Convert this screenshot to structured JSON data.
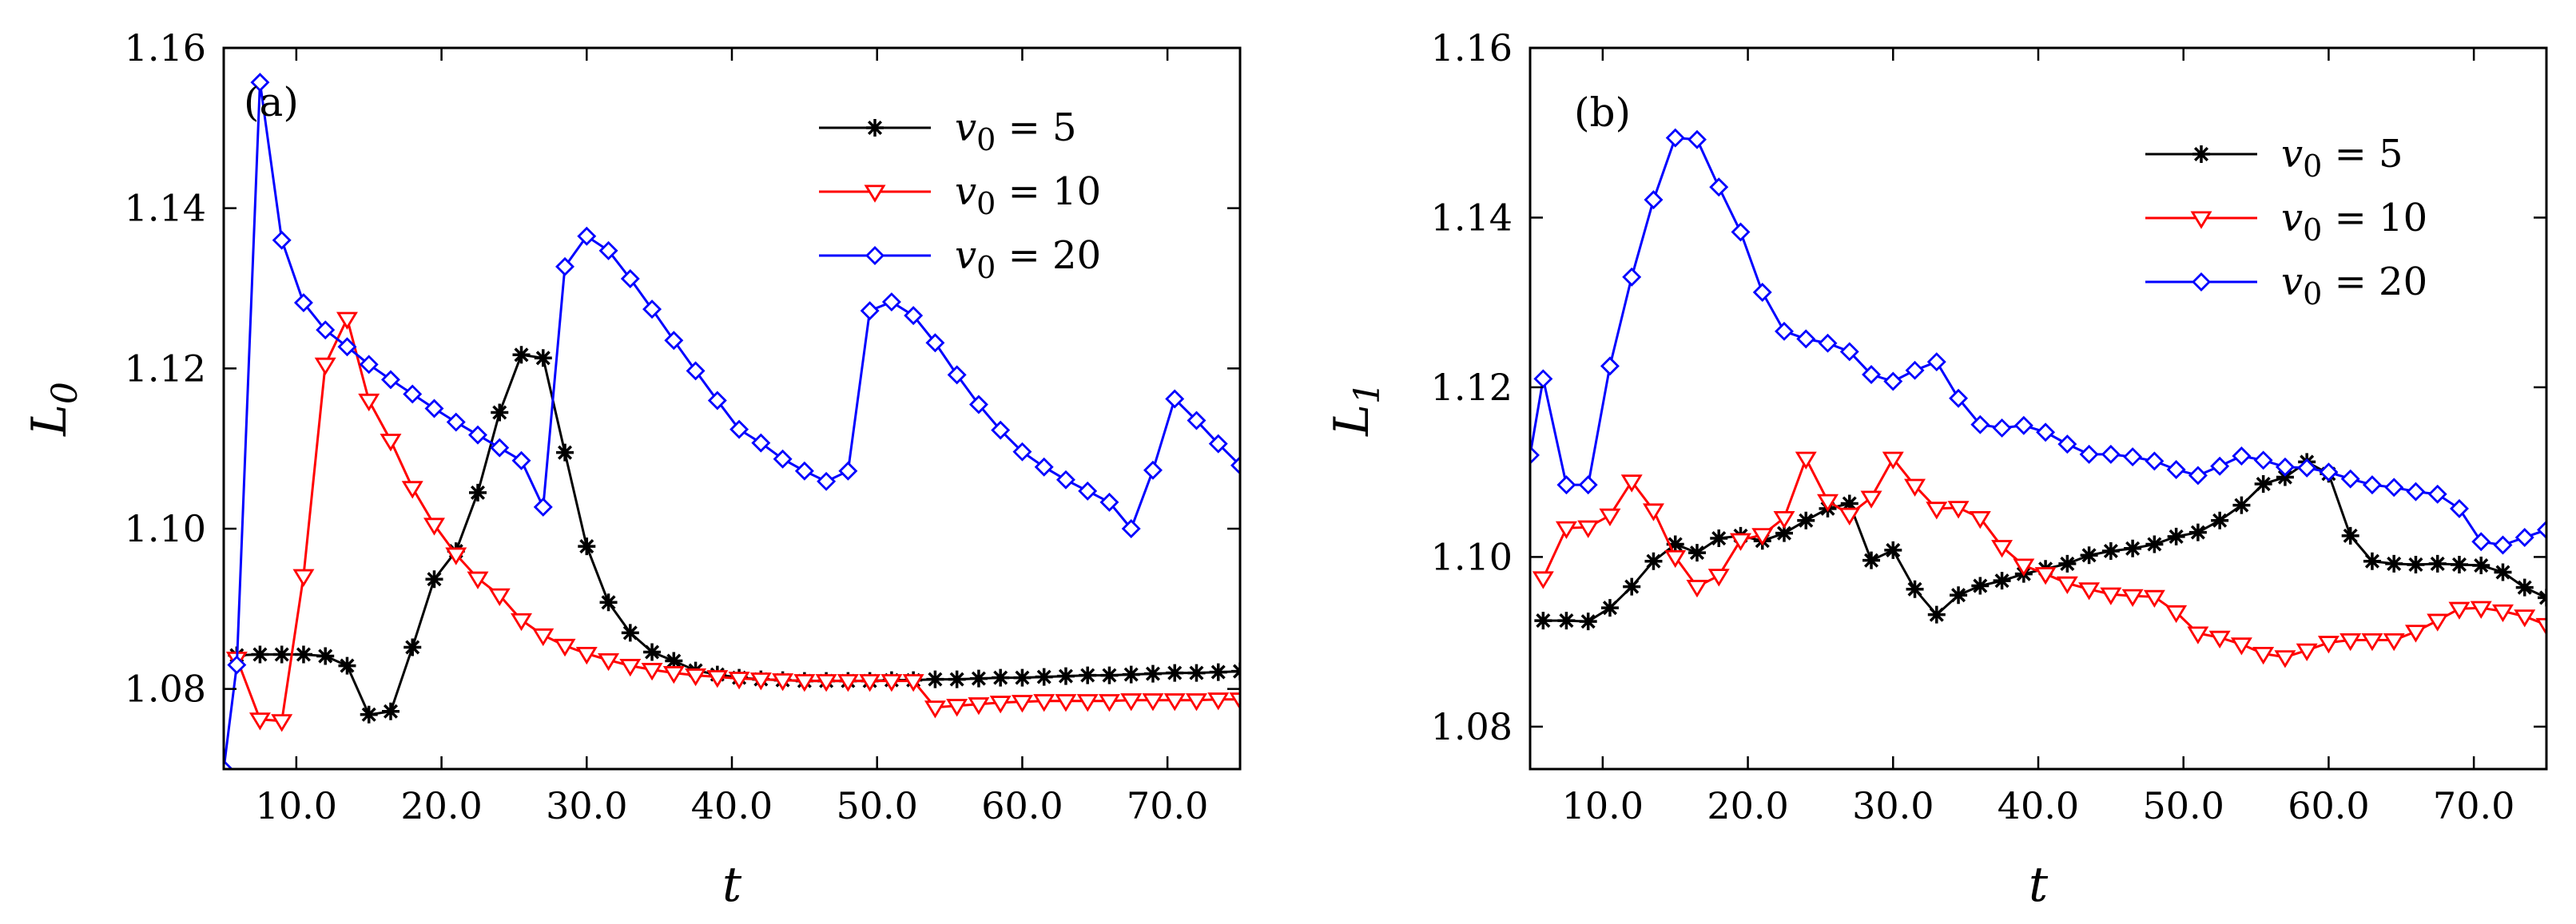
{
  "colors": {
    "v5": "#000000",
    "v10": "#ff0000",
    "v20": "#0000ff"
  },
  "chart_data": [
    {
      "type": "line",
      "panel_label": "(a)",
      "xlabel": "t",
      "ylabel": "L",
      "ylabel_sub": "0",
      "xlim": [
        5,
        75
      ],
      "ylim": [
        1.07,
        1.16
      ],
      "xticks": [
        10,
        20,
        30,
        40,
        50,
        60,
        70
      ],
      "xtick_labels": [
        "10.0",
        "20.0",
        "30.0",
        "40.0",
        "50.0",
        "60.0",
        "70.0"
      ],
      "yticks": [
        1.08,
        1.1,
        1.12,
        1.14,
        1.16
      ],
      "ytick_labels": [
        "1.08",
        "1.10",
        "1.12",
        "1.14",
        "1.16"
      ],
      "legend_position": "top-right",
      "series": [
        {
          "name": "v0 = 5",
          "legend_var": "v",
          "legend_sub": "0",
          "legend_rest": " = 5",
          "color": "#000000",
          "marker": "star",
          "x": [
            5.9,
            7.5,
            9.0,
            10.5,
            12.0,
            13.5,
            15.0,
            16.5,
            18.0,
            19.5,
            21.0,
            22.5,
            24.0,
            25.5,
            27.0,
            28.5,
            30.0,
            31.5,
            33.0,
            34.5,
            36.0,
            37.5,
            39.0,
            40.5,
            42.0,
            43.5,
            45.0,
            46.5,
            48.0,
            49.5,
            51.0,
            52.5,
            54.0,
            55.5,
            57.0,
            58.5,
            60.0,
            61.5,
            63.0,
            64.5,
            66.0,
            67.5,
            69.0,
            70.5,
            72.0,
            73.5,
            75.0
          ],
          "y": [
            1.0842,
            1.0843,
            1.0843,
            1.0843,
            1.0841,
            1.0829,
            1.0768,
            1.0772,
            1.0852,
            1.0937,
            1.0972,
            1.1045,
            1.1145,
            1.1217,
            1.1213,
            1.1095,
            1.0978,
            1.0908,
            1.087,
            1.0846,
            1.0835,
            1.0823,
            1.0818,
            1.0814,
            1.0812,
            1.0811,
            1.081,
            1.081,
            1.081,
            1.081,
            1.0811,
            1.0811,
            1.0812,
            1.0812,
            1.0813,
            1.0814,
            1.0814,
            1.0815,
            1.0816,
            1.0817,
            1.0817,
            1.0818,
            1.0819,
            1.082,
            1.082,
            1.0821,
            1.0822
          ]
        },
        {
          "name": "v0 = 10",
          "legend_var": "v",
          "legend_sub": "0",
          "legend_rest": " = 10",
          "color": "#ff0000",
          "marker": "triangle-down",
          "x": [
            5.9,
            7.5,
            9.0,
            10.5,
            12.0,
            13.5,
            15.0,
            16.5,
            18.0,
            19.5,
            21.0,
            22.5,
            24.0,
            25.5,
            27.0,
            28.5,
            30.0,
            31.5,
            33.0,
            34.5,
            36.0,
            37.5,
            39.0,
            40.5,
            42.0,
            43.5,
            45.0,
            46.5,
            48.0,
            49.5,
            51.0,
            52.5,
            54.0,
            55.5,
            57.0,
            58.5,
            60.0,
            61.5,
            63.0,
            64.5,
            66.0,
            67.5,
            69.0,
            70.5,
            72.0,
            73.5,
            75.0
          ],
          "y": [
            1.0838,
            1.0762,
            1.076,
            1.0941,
            1.1205,
            1.1262,
            1.116,
            1.111,
            1.1051,
            1.1005,
            1.0968,
            1.0938,
            1.0917,
            1.0886,
            1.0867,
            1.0854,
            1.0844,
            1.0836,
            1.0829,
            1.0824,
            1.082,
            1.0817,
            1.0815,
            1.0813,
            1.0812,
            1.0811,
            1.081,
            1.081,
            1.081,
            1.081,
            1.081,
            1.081,
            1.0777,
            1.0779,
            1.0781,
            1.0783,
            1.0784,
            1.0785,
            1.0785,
            1.0785,
            1.0785,
            1.0786,
            1.0786,
            1.0786,
            1.0786,
            1.0787,
            1.0787
          ]
        },
        {
          "name": "v0 = 20",
          "legend_var": "v",
          "legend_sub": "0",
          "legend_rest": " = 20",
          "color": "#0000ff",
          "marker": "diamond",
          "x": [
            5.0,
            5.9,
            7.5,
            9.0,
            10.5,
            12.0,
            13.5,
            15.0,
            16.5,
            18.0,
            19.5,
            21.0,
            22.5,
            24.0,
            25.5,
            27.0,
            28.5,
            30.0,
            31.5,
            33.0,
            34.5,
            36.0,
            37.5,
            39.0,
            40.5,
            42.0,
            43.5,
            45.0,
            46.5,
            48.0,
            49.5,
            51.0,
            52.5,
            54.0,
            55.5,
            57.0,
            58.5,
            60.0,
            61.5,
            63.0,
            64.5,
            66.0,
            67.5,
            69.0,
            70.5,
            72.0,
            73.5,
            75.0
          ],
          "y": [
            1.07,
            1.083,
            1.1557,
            1.136,
            1.1282,
            1.1248,
            1.1227,
            1.1205,
            1.1186,
            1.1168,
            1.115,
            1.1133,
            1.1117,
            1.1101,
            1.1085,
            1.1027,
            1.1327,
            1.1365,
            1.1347,
            1.1312,
            1.1274,
            1.1235,
            1.1197,
            1.116,
            1.1124,
            1.1107,
            1.1087,
            1.1072,
            1.1059,
            1.1072,
            1.1272,
            1.1283,
            1.1266,
            1.1232,
            1.1192,
            1.1155,
            1.1123,
            1.1096,
            1.1077,
            1.1061,
            1.1047,
            1.1033,
            1.1,
            1.1073,
            1.1162,
            1.1135,
            1.1106,
            1.1079
          ]
        }
      ]
    },
    {
      "type": "line",
      "panel_label": "(b)",
      "xlabel": "t",
      "ylabel": "L",
      "ylabel_sub": "1",
      "xlim": [
        5,
        75
      ],
      "ylim": [
        1.075,
        1.16
      ],
      "xticks": [
        10,
        20,
        30,
        40,
        50,
        60,
        70
      ],
      "xtick_labels": [
        "10.0",
        "20.0",
        "30.0",
        "40.0",
        "50.0",
        "60.0",
        "70.0"
      ],
      "yticks": [
        1.08,
        1.1,
        1.12,
        1.14,
        1.16
      ],
      "ytick_labels": [
        "1.08",
        "1.10",
        "1.12",
        "1.14",
        "1.16"
      ],
      "legend_position": "top-right",
      "series": [
        {
          "name": "v0 = 5",
          "legend_var": "v",
          "legend_sub": "0",
          "legend_rest": " = 5",
          "color": "#000000",
          "marker": "star",
          "x": [
            5.9,
            7.5,
            9.0,
            10.5,
            12.0,
            13.5,
            15.0,
            16.5,
            18.0,
            19.5,
            21.0,
            22.5,
            24.0,
            25.5,
            27.0,
            28.5,
            30.0,
            31.5,
            33.0,
            34.5,
            36.0,
            37.5,
            39.0,
            40.5,
            42.0,
            43.5,
            45.0,
            46.5,
            48.0,
            49.5,
            51.0,
            52.5,
            54.0,
            55.5,
            57.0,
            58.5,
            60.0,
            61.5,
            63.0,
            64.5,
            66.0,
            67.5,
            69.0,
            70.5,
            72.0,
            73.5,
            75.0
          ],
          "y": [
            1.0925,
            1.0925,
            1.0924,
            1.094,
            1.0965,
            1.0995,
            1.1015,
            1.1005,
            1.1022,
            1.1025,
            1.1019,
            1.1028,
            1.1043,
            1.1057,
            1.1063,
            1.0996,
            1.1008,
            1.0962,
            1.0932,
            1.0955,
            1.0966,
            1.0972,
            1.098,
            1.0986,
            1.0992,
            1.1002,
            1.1007,
            1.101,
            1.1015,
            1.1024,
            1.1029,
            1.1043,
            1.1061,
            1.1086,
            1.1094,
            1.1112,
            1.1098,
            1.1025,
            1.0995,
            1.0992,
            1.0991,
            1.0992,
            1.0991,
            1.099,
            1.0982,
            1.0964,
            1.0952
          ]
        },
        {
          "name": "v0 = 10",
          "legend_var": "v",
          "legend_sub": "0",
          "legend_rest": " = 10",
          "color": "#ff0000",
          "marker": "triangle-down",
          "x": [
            5.9,
            7.5,
            9.0,
            10.5,
            12.0,
            13.5,
            15.0,
            16.5,
            18.0,
            19.5,
            21.0,
            22.5,
            24.0,
            25.5,
            27.0,
            28.5,
            30.0,
            31.5,
            33.0,
            34.5,
            36.0,
            37.5,
            39.0,
            40.5,
            42.0,
            43.5,
            45.0,
            46.5,
            48.0,
            49.5,
            51.0,
            52.5,
            54.0,
            55.5,
            57.0,
            58.5,
            60.0,
            61.5,
            63.0,
            64.5,
            66.0,
            67.5,
            69.0,
            70.5,
            72.0,
            73.5,
            75.0
          ],
          "y": [
            1.0975,
            1.1034,
            1.1035,
            1.1049,
            1.1089,
            1.1055,
            1.1,
            1.0965,
            1.0978,
            1.102,
            1.1026,
            1.1046,
            1.1116,
            1.1066,
            1.105,
            1.107,
            1.1116,
            1.1084,
            1.1057,
            1.1058,
            1.1046,
            1.1012,
            1.099,
            1.098,
            1.0969,
            1.0962,
            1.0956,
            1.0954,
            1.0953,
            1.0935,
            1.091,
            1.0905,
            1.0897,
            1.0886,
            1.0882,
            1.089,
            1.0899,
            1.0902,
            1.0902,
            1.0902,
            1.0912,
            1.0925,
            1.0939,
            1.094,
            1.0936,
            1.093,
            1.092
          ]
        },
        {
          "name": "v0 = 20",
          "legend_var": "v",
          "legend_sub": "0",
          "legend_rest": " = 20",
          "color": "#0000ff",
          "marker": "diamond",
          "x": [
            5.0,
            5.9,
            7.5,
            9.0,
            10.5,
            12.0,
            13.5,
            15.0,
            16.5,
            18.0,
            19.5,
            21.0,
            22.5,
            24.0,
            25.5,
            27.0,
            28.5,
            30.0,
            31.5,
            33.0,
            34.5,
            36.0,
            37.5,
            39.0,
            40.5,
            42.0,
            43.5,
            45.0,
            46.5,
            48.0,
            49.5,
            51.0,
            52.5,
            54.0,
            55.5,
            57.0,
            58.5,
            60.0,
            61.5,
            63.0,
            64.5,
            66.0,
            67.5,
            69.0,
            70.5,
            72.0,
            73.5,
            75.0
          ],
          "y": [
            1.112,
            1.121,
            1.1085,
            1.1085,
            1.1225,
            1.133,
            1.1421,
            1.1494,
            1.1492,
            1.1436,
            1.1383,
            1.1312,
            1.1266,
            1.1257,
            1.1252,
            1.1242,
            1.1215,
            1.1207,
            1.122,
            1.123,
            1.1187,
            1.1156,
            1.1152,
            1.1155,
            1.1147,
            1.1133,
            1.1121,
            1.1121,
            1.1118,
            1.1113,
            1.1103,
            1.1096,
            1.1107,
            1.1119,
            1.1114,
            1.1106,
            1.1105,
            1.11,
            1.1092,
            1.1085,
            1.1082,
            1.1077,
            1.1074,
            1.1057,
            1.1018,
            1.1014,
            1.1023,
            1.1032
          ]
        }
      ]
    }
  ]
}
